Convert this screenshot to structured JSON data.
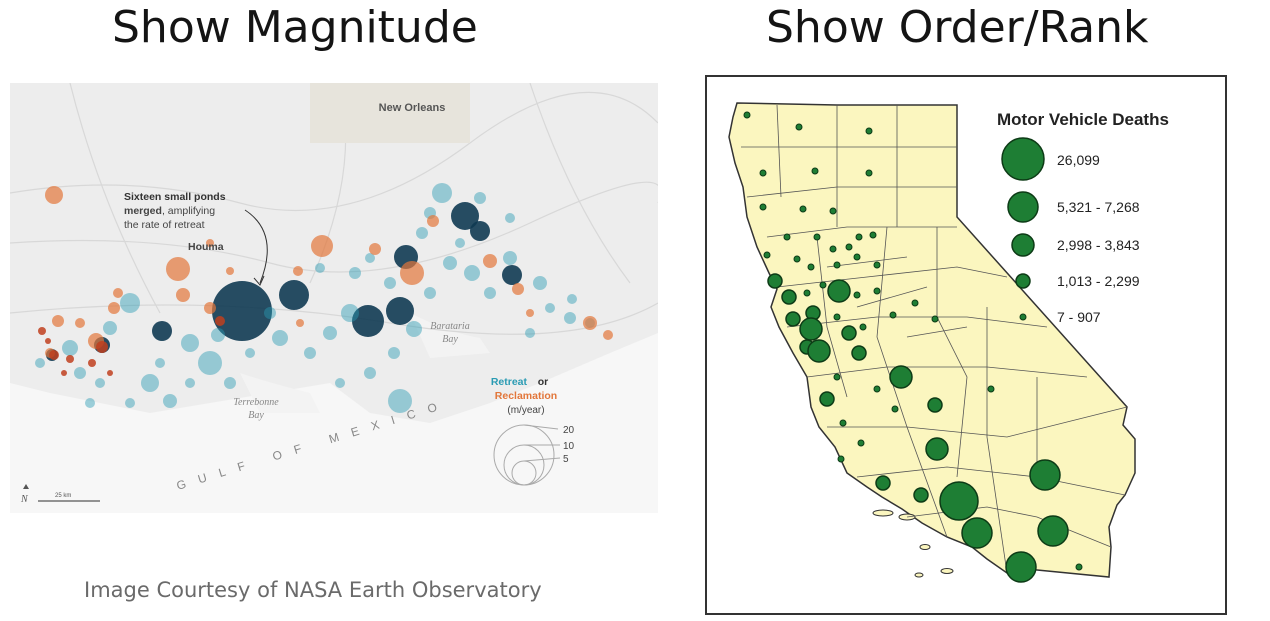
{
  "headings": {
    "left": "Show Magnitude",
    "right": "Show Order/Rank"
  },
  "left_map": {
    "city": "New Orleans",
    "annotation_bold_1": "Sixteen small ponds",
    "annotation_bold_2": "merged",
    "annotation_rest_2": ", amplifying",
    "annotation_line_3": "the rate of retreat",
    "houma": "Houma",
    "barataria_1": "Barataria",
    "barataria_2": "Bay",
    "terrebonne_1": "Terrebonne",
    "terrebonne_2": "Bay",
    "gulf": "GULF OF MEXICO",
    "legend": {
      "retreat": "Retreat",
      "or": "or",
      "reclamation": "Reclamation",
      "units": "(m/year)",
      "sizes": [
        "20",
        "10",
        "5"
      ]
    },
    "north": "N",
    "scale": "25 km",
    "colors": {
      "retreat": "#2a9bb3",
      "retreat_dark": "#0f3a52",
      "reclamation": "#e2763a",
      "reclamation_dark": "#c0401e",
      "land": "#ededed",
      "water": "#f7f7f7"
    }
  },
  "credit": "Image Courtesy of NASA Earth Observatory",
  "right_map": {
    "legend_title": "Motor Vehicle Deaths",
    "classes": [
      "26,099",
      "5,321 - 7,268",
      "2,998 - 3,843",
      "1,013 - 2,299",
      "7 - 907"
    ],
    "colors": {
      "fill": "#1e7e34",
      "stroke": "#0d3b16",
      "land": "#fbf6bf",
      "border": "#333333"
    }
  }
}
